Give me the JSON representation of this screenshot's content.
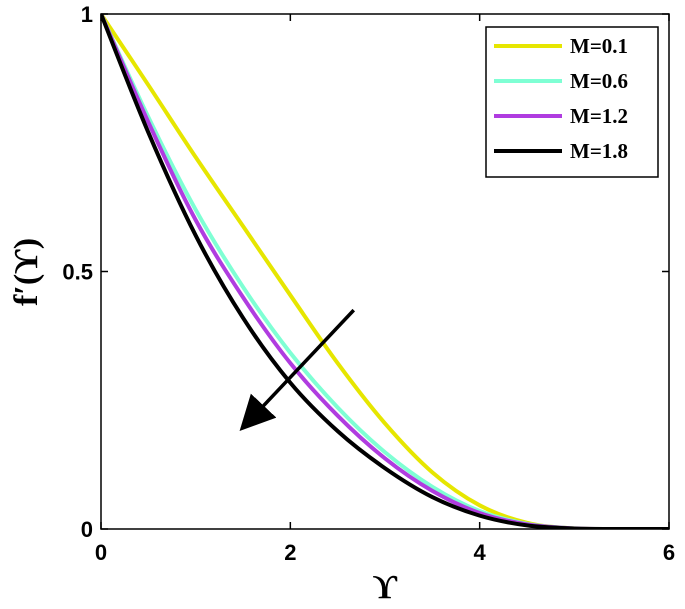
{
  "chart_data": {
    "type": "line",
    "xlabel": "ϒ",
    "ylabel": "f′(ϒ)",
    "xlim": [
      0,
      6
    ],
    "ylim": [
      0,
      1
    ],
    "x_ticks": [
      "0",
      "2",
      "4",
      "6"
    ],
    "y_ticks": [
      "0",
      "0.5",
      "1"
    ],
    "grid": false,
    "legend_position": "top-right",
    "series": [
      {
        "name": "M=0.1",
        "color": "#e6e600",
        "x": [
          0,
          0.5,
          1,
          1.5,
          2,
          2.5,
          3,
          3.5,
          4,
          4.5,
          5,
          5.5,
          6
        ],
        "y": [
          1.0,
          0.862,
          0.722,
          0.588,
          0.454,
          0.322,
          0.205,
          0.11,
          0.046,
          0.012,
          0.001,
          0.0,
          0.0
        ]
      },
      {
        "name": "M=0.6",
        "color": "#7fffd4",
        "x": [
          0,
          0.5,
          1,
          1.5,
          2,
          2.5,
          3,
          3.5,
          4,
          4.5,
          5,
          5.5,
          6
        ],
        "y": [
          1.0,
          0.8,
          0.62,
          0.47,
          0.342,
          0.236,
          0.149,
          0.082,
          0.035,
          0.01,
          0.001,
          0.0,
          0.0
        ]
      },
      {
        "name": "M=1.2",
        "color": "#b03ce0",
        "x": [
          0,
          0.5,
          1,
          1.5,
          2,
          2.5,
          3,
          3.5,
          4,
          4.5,
          5,
          5.5,
          6
        ],
        "y": [
          1.0,
          0.79,
          0.6,
          0.45,
          0.322,
          0.22,
          0.137,
          0.074,
          0.031,
          0.009,
          0.001,
          0.0,
          0.0
        ]
      },
      {
        "name": "M=1.8",
        "color": "#000000",
        "x": [
          0,
          0.5,
          1,
          1.5,
          2,
          2.5,
          3,
          3.5,
          4,
          4.5,
          5,
          5.5,
          6
        ],
        "y": [
          1.0,
          0.77,
          0.57,
          0.41,
          0.284,
          0.19,
          0.118,
          0.062,
          0.026,
          0.007,
          0.001,
          0.0,
          0.0
        ]
      }
    ],
    "annotations": [
      {
        "type": "arrow",
        "from": [
          2.67,
          0.425
        ],
        "to": [
          1.54,
          0.205
        ],
        "color": "#000000"
      }
    ]
  }
}
